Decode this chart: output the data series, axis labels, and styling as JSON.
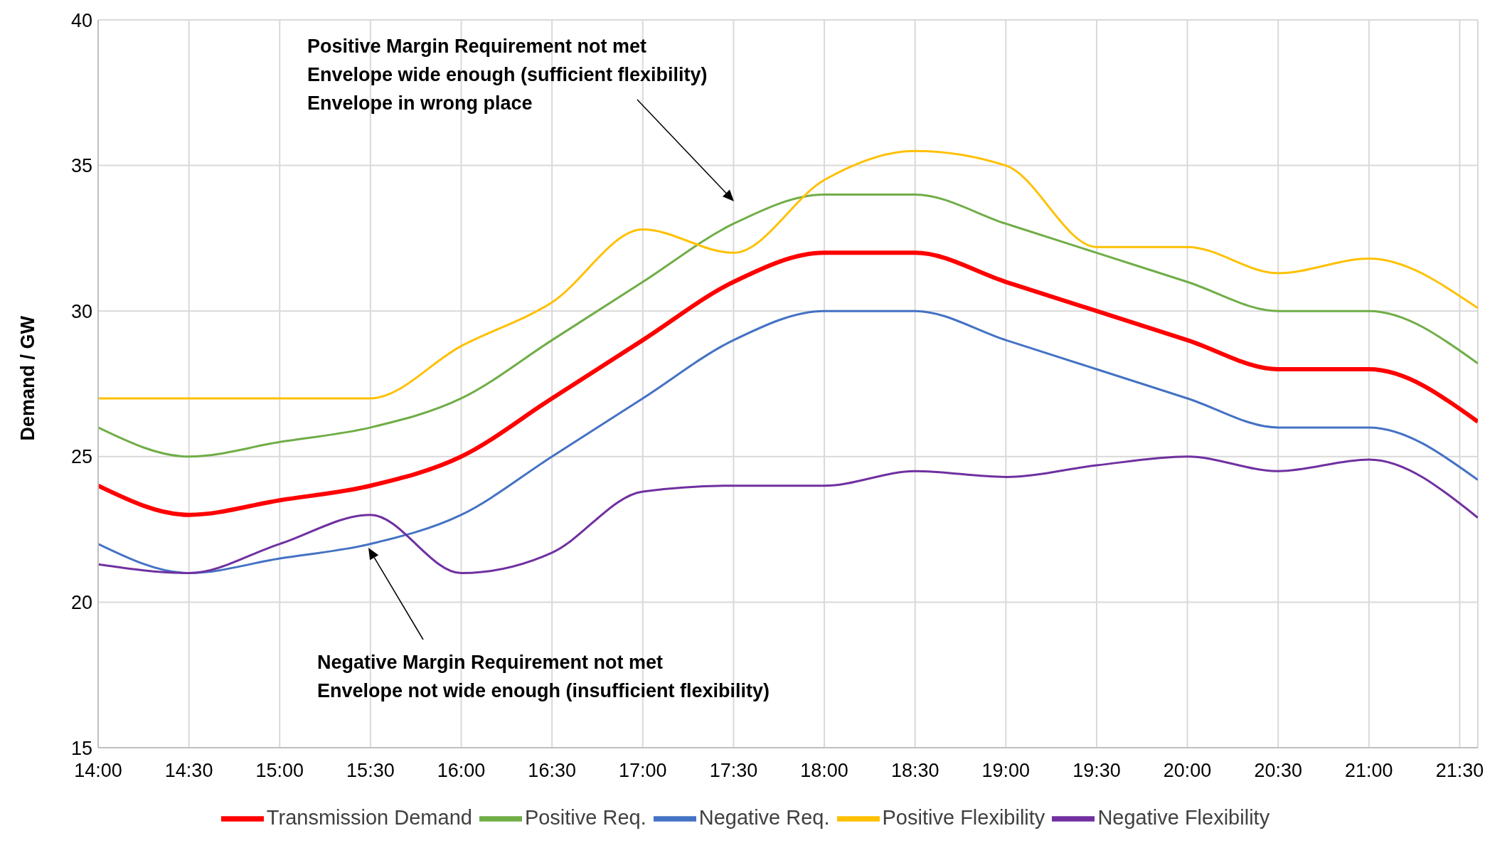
{
  "chart_data": {
    "type": "line",
    "ylabel": "Demand / GW",
    "x": [
      14,
      14.5,
      15,
      15.5,
      16,
      16.5,
      17,
      17.5,
      18,
      18.5,
      19,
      19.5,
      20,
      20.5,
      21,
      21.6
    ],
    "series": [
      {
        "name": "Transmission Demand",
        "color": "#ff0000",
        "values": [
          24,
          23,
          23.5,
          24,
          25,
          27,
          29,
          31,
          32,
          32,
          31,
          30,
          29,
          28,
          28,
          26.2
        ]
      },
      {
        "name": "Positive Req.",
        "color": "#70ad47",
        "values": [
          26,
          25,
          25.5,
          26,
          27,
          29,
          31,
          33,
          34,
          34,
          33,
          32,
          31,
          30,
          30,
          28.2
        ]
      },
      {
        "name": "Negative Req.",
        "color": "#4472c4",
        "values": [
          22,
          21,
          21.5,
          22,
          23,
          25,
          27,
          29,
          30,
          30,
          29,
          28,
          27,
          26,
          26,
          24.2
        ]
      },
      {
        "name": "Positive Flexibility",
        "color": "#ffc000",
        "values": [
          27,
          27,
          27,
          27,
          28.8,
          30.3,
          32.8,
          32,
          34.5,
          35.5,
          35,
          32.2,
          32.2,
          31.3,
          31.8,
          30.1
        ]
      },
      {
        "name": "Negative Flexibility",
        "color": "#7030a0",
        "values": [
          21.3,
          21,
          22,
          23,
          21,
          21.7,
          23.8,
          24,
          24,
          24.5,
          24.3,
          24.7,
          25,
          24.5,
          24.9,
          22.9
        ]
      }
    ],
    "xlim": [
      14,
      21.6
    ],
    "xticks": [
      {
        "value": 14,
        "label": "14:00"
      },
      {
        "value": 14.5,
        "label": "14:30"
      },
      {
        "value": 15,
        "label": "15:00"
      },
      {
        "value": 15.5,
        "label": "15:30"
      },
      {
        "value": 16,
        "label": "16:00"
      },
      {
        "value": 16.5,
        "label": "16:30"
      },
      {
        "value": 17,
        "label": "17:00"
      },
      {
        "value": 17.5,
        "label": "17:30"
      },
      {
        "value": 18,
        "label": "18:00"
      },
      {
        "value": 18.5,
        "label": "18:30"
      },
      {
        "value": 19,
        "label": "19:00"
      },
      {
        "value": 19.5,
        "label": "19:30"
      },
      {
        "value": 20,
        "label": "20:00"
      },
      {
        "value": 20.5,
        "label": "20:30"
      },
      {
        "value": 21,
        "label": "21:00"
      },
      {
        "value": 21.5,
        "label": "21:30"
      }
    ],
    "ylim": [
      15,
      40
    ],
    "yticks": [
      15,
      20,
      25,
      30,
      35,
      40
    ],
    "grid": true,
    "legend": "bottom",
    "marker": "none",
    "line_style": "solid",
    "annotations": [
      "Positive Margin Requirement not met\nEnvelope wide enough (sufficient flexibility)\nEnvelope in wrong place",
      "Negative Margin Requirement not met\nEnvelope not wide enough (insufficient flexibility)"
    ]
  }
}
